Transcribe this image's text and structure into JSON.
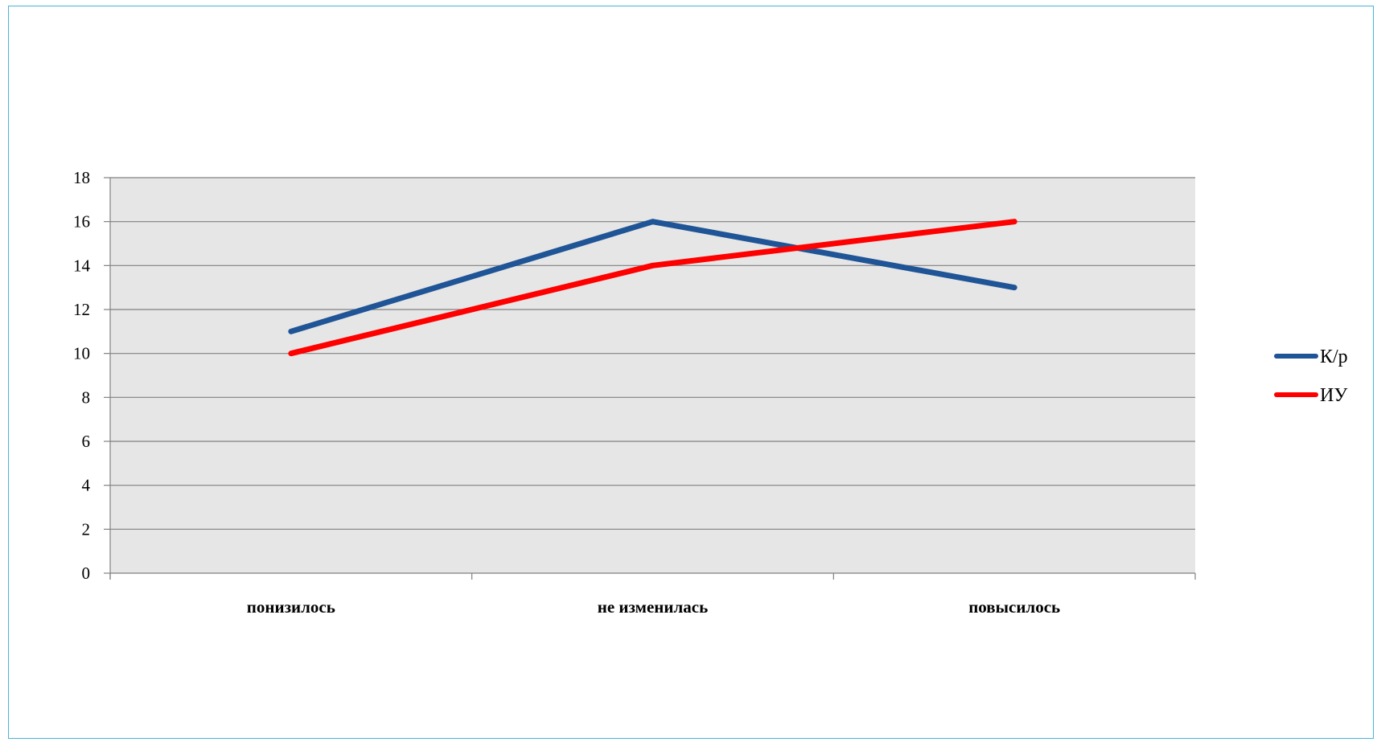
{
  "chart_data": {
    "type": "line",
    "title": "",
    "xlabel": "",
    "ylabel": "",
    "categories": [
      "понизилось",
      "не изменилась",
      "повысилось"
    ],
    "ylim": [
      0,
      18
    ],
    "yticks": [
      0,
      2,
      4,
      6,
      8,
      10,
      12,
      14,
      16,
      18
    ],
    "grid": true,
    "legend_position": "right",
    "series": [
      {
        "name": "К/р",
        "color": "#1f5496",
        "values": [
          11,
          16,
          13
        ]
      },
      {
        "name": "ИУ",
        "color": "#ff0000",
        "values": [
          10,
          14,
          16
        ]
      }
    ],
    "plot_background": "#e6e6e6"
  }
}
